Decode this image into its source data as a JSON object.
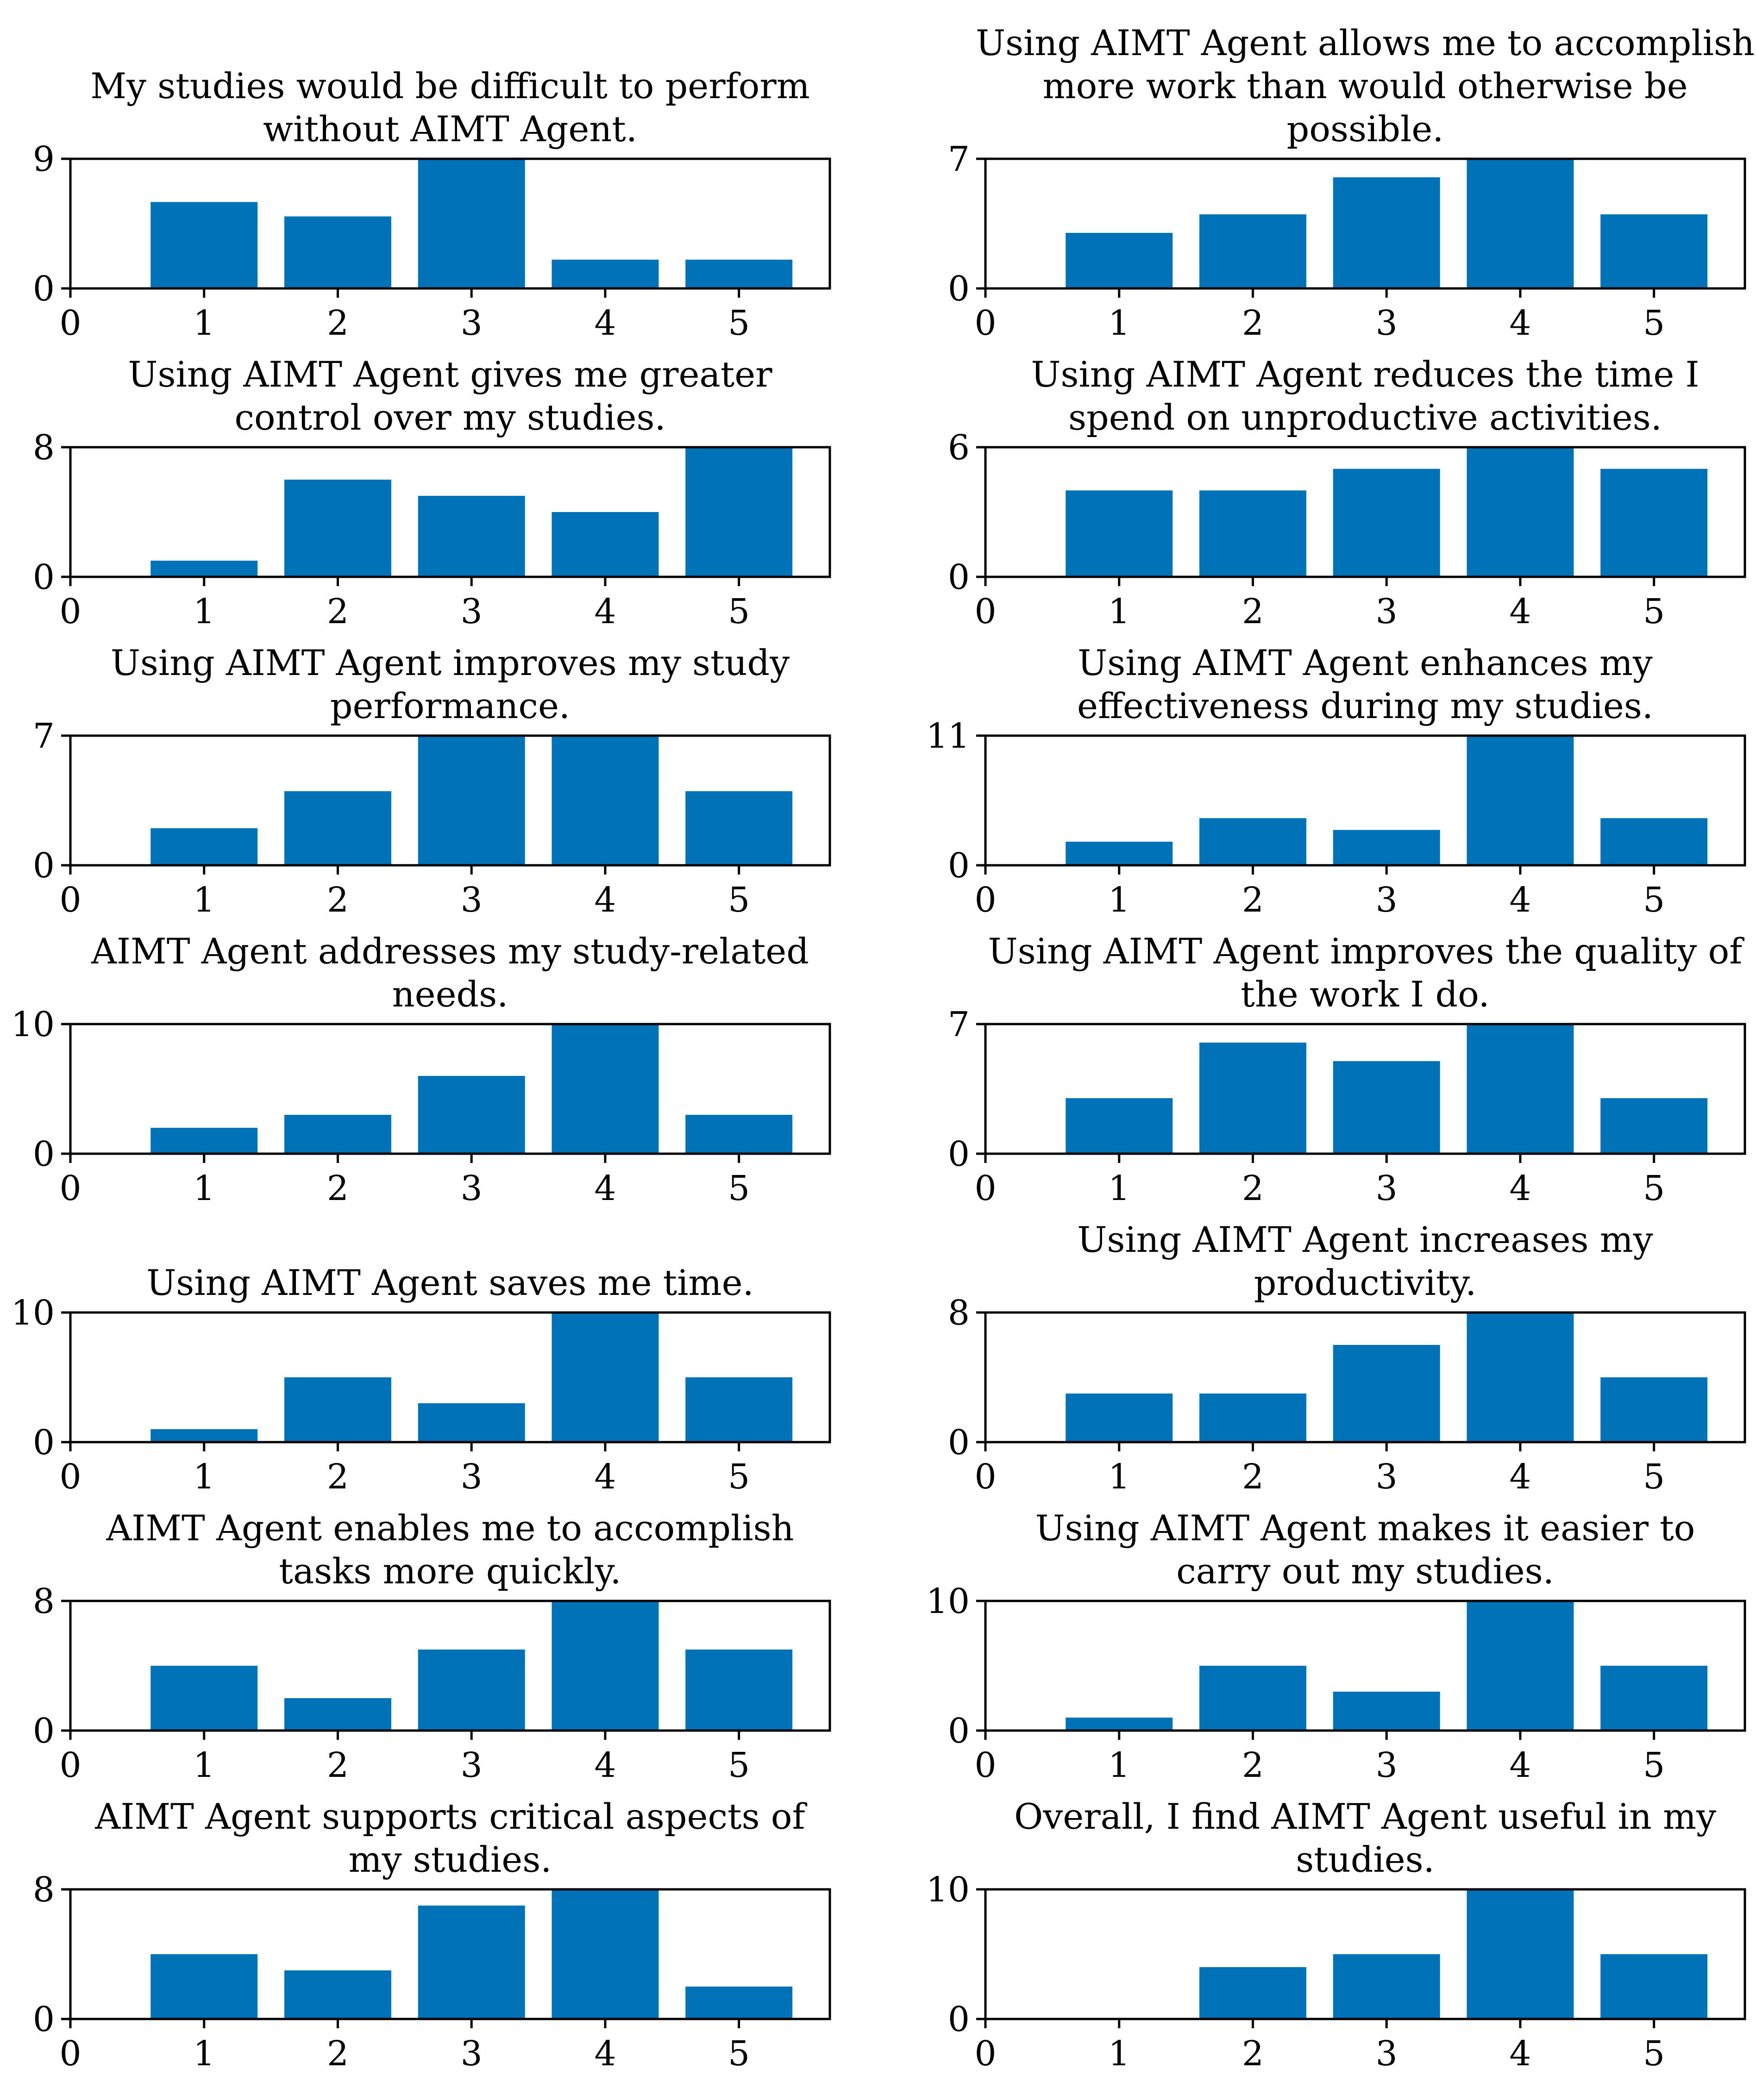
{
  "figure": {
    "bar_color": "#0072B8",
    "axis_color": "#000000",
    "background": "#ffffff"
  },
  "chart_data": [
    {
      "type": "bar",
      "title": [
        "My studies would be difficult to perform",
        "without AIMT Agent."
      ],
      "categories": [
        1,
        2,
        3,
        4,
        5
      ],
      "values": [
        6,
        5,
        9,
        2,
        2
      ],
      "xticks": [
        "0",
        "1",
        "2",
        "3",
        "4",
        "5"
      ],
      "yticks": [
        "0",
        "9"
      ],
      "ylim": [
        0,
        9
      ],
      "xlabel": "",
      "ylabel": ""
    },
    {
      "type": "bar",
      "title": [
        "Using AIMT Agent allows me to accomplish",
        "more work than would otherwise be",
        "possible."
      ],
      "categories": [
        1,
        2,
        3,
        4,
        5
      ],
      "values": [
        3,
        4,
        6,
        7,
        4
      ],
      "xticks": [
        "0",
        "1",
        "2",
        "3",
        "4",
        "5"
      ],
      "yticks": [
        "0",
        "7"
      ],
      "ylim": [
        0,
        7
      ],
      "xlabel": "",
      "ylabel": ""
    },
    {
      "type": "bar",
      "title": [
        "Using AIMT Agent gives me greater",
        "control over my studies."
      ],
      "categories": [
        1,
        2,
        3,
        4,
        5
      ],
      "values": [
        1,
        6,
        5,
        4,
        8
      ],
      "xticks": [
        "0",
        "1",
        "2",
        "3",
        "4",
        "5"
      ],
      "yticks": [
        "0",
        "8"
      ],
      "ylim": [
        0,
        8
      ],
      "xlabel": "",
      "ylabel": ""
    },
    {
      "type": "bar",
      "title": [
        "Using AIMT Agent reduces the time I",
        "spend on unproductive activities."
      ],
      "categories": [
        1,
        2,
        3,
        4,
        5
      ],
      "values": [
        4,
        4,
        5,
        6,
        5
      ],
      "xticks": [
        "0",
        "1",
        "2",
        "3",
        "4",
        "5"
      ],
      "yticks": [
        "0",
        "6"
      ],
      "ylim": [
        0,
        6
      ],
      "xlabel": "",
      "ylabel": ""
    },
    {
      "type": "bar",
      "title": [
        "Using AIMT Agent improves my study",
        "performance."
      ],
      "categories": [
        1,
        2,
        3,
        4,
        5
      ],
      "values": [
        2,
        4,
        7,
        7,
        4
      ],
      "xticks": [
        "0",
        "1",
        "2",
        "3",
        "4",
        "5"
      ],
      "yticks": [
        "0",
        "7"
      ],
      "ylim": [
        0,
        7
      ],
      "xlabel": "",
      "ylabel": ""
    },
    {
      "type": "bar",
      "title": [
        "Using AIMT Agent enhances my",
        "effectiveness during my studies."
      ],
      "categories": [
        1,
        2,
        3,
        4,
        5
      ],
      "values": [
        2,
        4,
        3,
        11,
        4
      ],
      "xticks": [
        "0",
        "1",
        "2",
        "3",
        "4",
        "5"
      ],
      "yticks": [
        "0",
        "11"
      ],
      "ylim": [
        0,
        11
      ],
      "xlabel": "",
      "ylabel": ""
    },
    {
      "type": "bar",
      "title": [
        "AIMT Agent addresses my study-related",
        "needs."
      ],
      "categories": [
        1,
        2,
        3,
        4,
        5
      ],
      "values": [
        2,
        3,
        6,
        10,
        3
      ],
      "xticks": [
        "0",
        "1",
        "2",
        "3",
        "4",
        "5"
      ],
      "yticks": [
        "0",
        "10"
      ],
      "ylim": [
        0,
        10
      ],
      "xlabel": "",
      "ylabel": ""
    },
    {
      "type": "bar",
      "title": [
        "Using AIMT Agent improves the quality of",
        "the work I do."
      ],
      "categories": [
        1,
        2,
        3,
        4,
        5
      ],
      "values": [
        3,
        6,
        5,
        7,
        3
      ],
      "xticks": [
        "0",
        "1",
        "2",
        "3",
        "4",
        "5"
      ],
      "yticks": [
        "0",
        "7"
      ],
      "ylim": [
        0,
        7
      ],
      "xlabel": "",
      "ylabel": ""
    },
    {
      "type": "bar",
      "title": [
        "Using AIMT Agent saves me time."
      ],
      "categories": [
        1,
        2,
        3,
        4,
        5
      ],
      "values": [
        1,
        5,
        3,
        10,
        5
      ],
      "xticks": [
        "0",
        "1",
        "2",
        "3",
        "4",
        "5"
      ],
      "yticks": [
        "0",
        "10"
      ],
      "ylim": [
        0,
        10
      ],
      "xlabel": "",
      "ylabel": ""
    },
    {
      "type": "bar",
      "title": [
        "Using AIMT Agent increases my",
        "productivity."
      ],
      "categories": [
        1,
        2,
        3,
        4,
        5
      ],
      "values": [
        3,
        3,
        6,
        8,
        4
      ],
      "xticks": [
        "0",
        "1",
        "2",
        "3",
        "4",
        "5"
      ],
      "yticks": [
        "0",
        "8"
      ],
      "ylim": [
        0,
        8
      ],
      "xlabel": "",
      "ylabel": ""
    },
    {
      "type": "bar",
      "title": [
        "AIMT Agent enables me to accomplish",
        "tasks more quickly."
      ],
      "categories": [
        1,
        2,
        3,
        4,
        5
      ],
      "values": [
        4,
        2,
        5,
        8,
        5
      ],
      "xticks": [
        "0",
        "1",
        "2",
        "3",
        "4",
        "5"
      ],
      "yticks": [
        "0",
        "8"
      ],
      "ylim": [
        0,
        8
      ],
      "xlabel": "",
      "ylabel": ""
    },
    {
      "type": "bar",
      "title": [
        "Using AIMT Agent makes it easier to",
        "carry out my studies."
      ],
      "categories": [
        1,
        2,
        3,
        4,
        5
      ],
      "values": [
        1,
        5,
        3,
        10,
        5
      ],
      "xticks": [
        "0",
        "1",
        "2",
        "3",
        "4",
        "5"
      ],
      "yticks": [
        "0",
        "10"
      ],
      "ylim": [
        0,
        10
      ],
      "xlabel": "",
      "ylabel": ""
    },
    {
      "type": "bar",
      "title": [
        "AIMT Agent supports critical aspects of",
        "my studies."
      ],
      "categories": [
        1,
        2,
        3,
        4,
        5
      ],
      "values": [
        4,
        3,
        7,
        8,
        2
      ],
      "xticks": [
        "0",
        "1",
        "2",
        "3",
        "4",
        "5"
      ],
      "yticks": [
        "0",
        "8"
      ],
      "ylim": [
        0,
        8
      ],
      "xlabel": "",
      "ylabel": ""
    },
    {
      "type": "bar",
      "title": [
        "Overall, I find AIMT Agent useful in my",
        "studies."
      ],
      "categories": [
        2,
        3,
        4,
        5
      ],
      "values": [
        4,
        5,
        10,
        5
      ],
      "xticks": [
        "0",
        "1",
        "2",
        "3",
        "4",
        "5"
      ],
      "yticks": [
        "0",
        "10"
      ],
      "ylim": [
        0,
        10
      ],
      "xlabel": "",
      "ylabel": ""
    }
  ]
}
